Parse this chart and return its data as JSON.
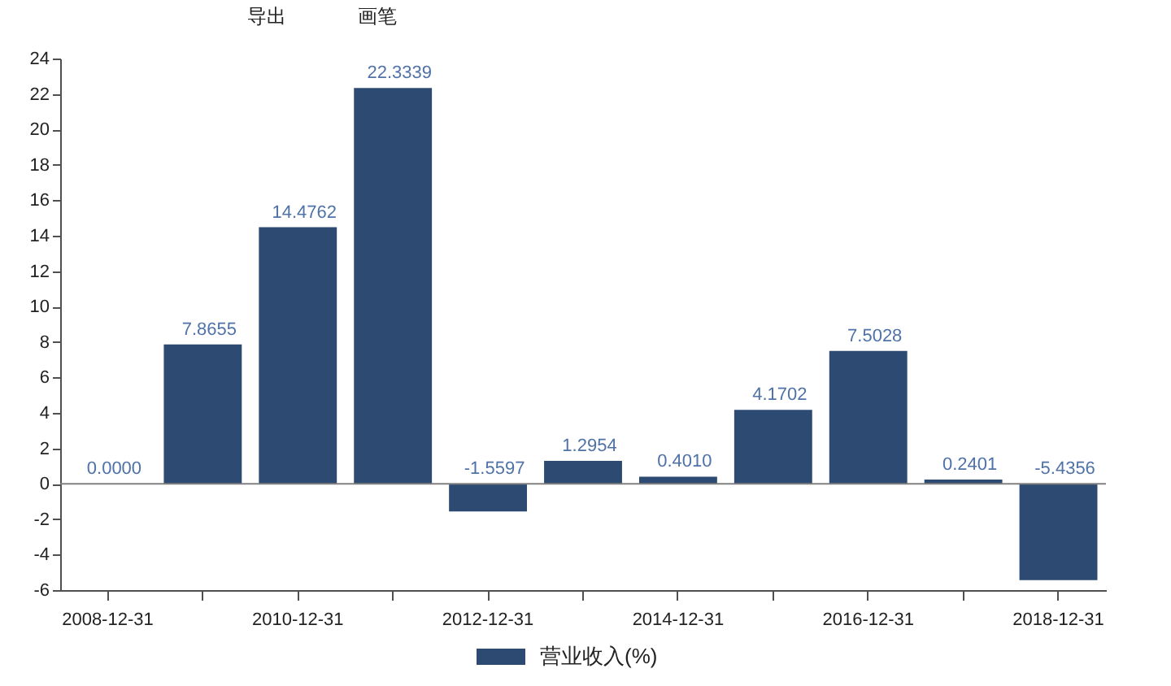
{
  "chart_data": {
    "type": "bar",
    "categories": [
      "2008-12-31",
      null,
      "2010-12-31",
      null,
      "2012-12-31",
      null,
      "2014-12-31",
      null,
      "2016-12-31",
      null,
      "2018-12-31"
    ],
    "series": [
      {
        "name": "营业收入(%)",
        "color": "#2c4a72",
        "values": [
          0.0,
          7.8655,
          14.4762,
          22.3339,
          -1.5597,
          1.2954,
          0.401,
          4.1702,
          7.5028,
          0.2401,
          -5.4356
        ],
        "value_labels": [
          "0.0000",
          "7.8655",
          "14.4762",
          "22.3339",
          "-1.5597",
          "1.2954",
          "0.4010",
          "4.1702",
          "7.5028",
          "0.2401",
          "-5.4356"
        ]
      }
    ],
    "ylim": [
      -6,
      24
    ],
    "yticks": [
      -6,
      -4,
      -2,
      0,
      2,
      4,
      6,
      8,
      10,
      12,
      14,
      16,
      18,
      20,
      22,
      24
    ],
    "grid": false,
    "legend": "bottom",
    "ref_lines": [
      {
        "axis": "y",
        "value": 0,
        "color": "#808080"
      }
    ],
    "annotations": [
      "导出",
      "画笔"
    ]
  }
}
